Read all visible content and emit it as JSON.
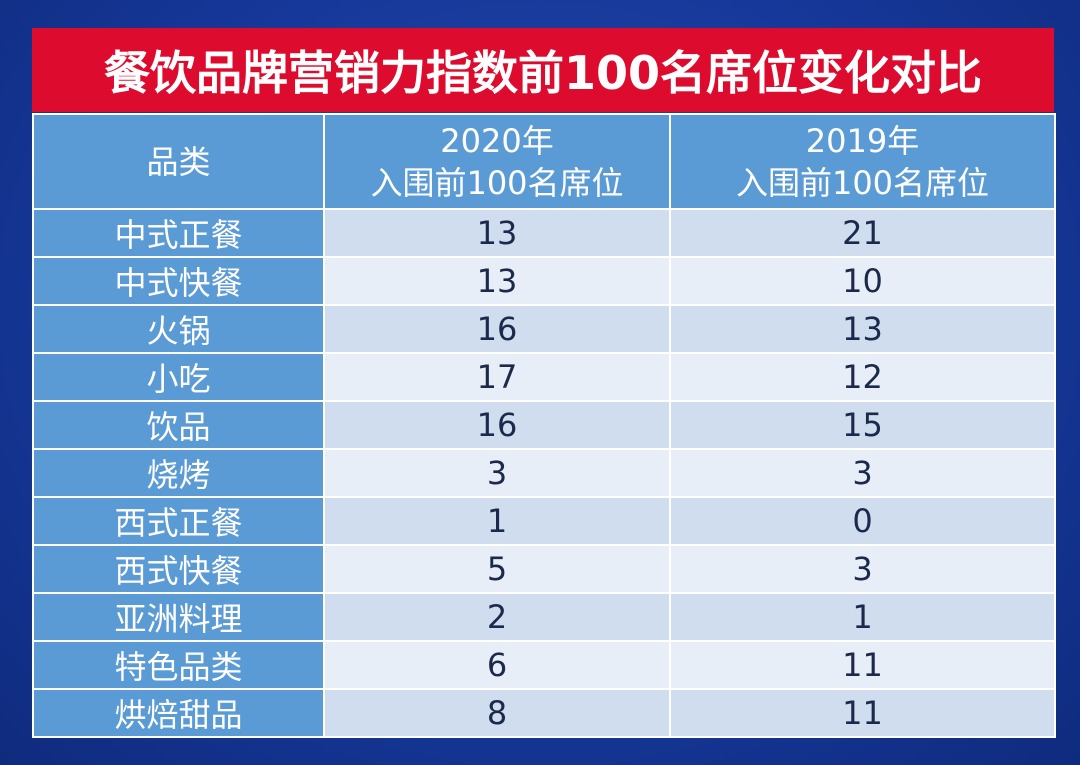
{
  "chart_data": {
    "type": "table",
    "title": "餐饮品牌营销力指数前100名席位变化对比",
    "columns": [
      {
        "label_line1": "品类",
        "label_line2": ""
      },
      {
        "label_line1": "2020年",
        "label_line2": "入围前100名席位"
      },
      {
        "label_line1": "2019年",
        "label_line2": "入围前100名席位"
      }
    ],
    "rows": [
      {
        "category": "中式正餐",
        "y2020": 13,
        "y2019": 21
      },
      {
        "category": "中式快餐",
        "y2020": 13,
        "y2019": 10
      },
      {
        "category": "火锅",
        "y2020": 16,
        "y2019": 13
      },
      {
        "category": "小吃",
        "y2020": 17,
        "y2019": 12
      },
      {
        "category": "饮品",
        "y2020": 16,
        "y2019": 15
      },
      {
        "category": "烧烤",
        "y2020": 3,
        "y2019": 3
      },
      {
        "category": "西式正餐",
        "y2020": 1,
        "y2019": 0
      },
      {
        "category": "西式快餐",
        "y2020": 5,
        "y2019": 3
      },
      {
        "category": "亚洲料理",
        "y2020": 2,
        "y2019": 1
      },
      {
        "category": "特色品类",
        "y2020": 6,
        "y2019": 11
      },
      {
        "category": "烘焙甜品",
        "y2020": 8,
        "y2019": 11
      }
    ]
  },
  "colors": {
    "title_background": "#dd0c2e",
    "header_background": "#5b9bd5",
    "row_light": "#e8eef7",
    "row_dark": "#cfddef",
    "page_background": "#16389a"
  }
}
